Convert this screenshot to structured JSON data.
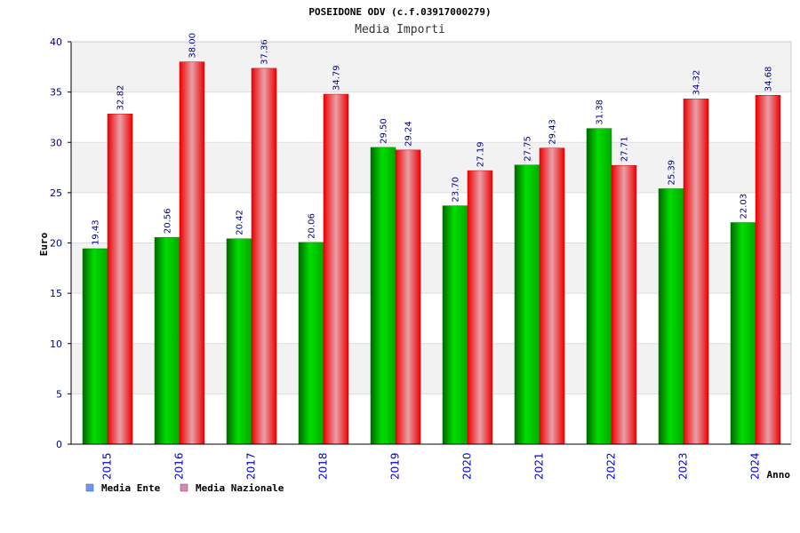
{
  "chart_data": {
    "type": "bar",
    "title": "POSEIDONE ODV (c.f.03917000279)",
    "subtitle": "Media Importi",
    "xlabel": "Anno",
    "ylabel": "Euro",
    "ylim": [
      0,
      40
    ],
    "yticks": [
      0,
      5,
      10,
      15,
      20,
      25,
      30,
      35,
      40
    ],
    "grid": true,
    "legend_position": "bottom-left",
    "categories": [
      "2015",
      "2016",
      "2017",
      "2018",
      "2019",
      "2020",
      "2021",
      "2022",
      "2023",
      "2024"
    ],
    "series": [
      {
        "name": "Media Ente",
        "color": "#00aa00",
        "legend_color": "#6699ff",
        "values": [
          19.43,
          20.56,
          20.42,
          20.06,
          29.5,
          23.7,
          27.75,
          31.38,
          25.39,
          22.03
        ],
        "labels": [
          "19.43",
          "20.56",
          "20.42",
          "20.06",
          "29.50",
          "23.70",
          "27.75",
          "31.38",
          "25.39",
          "22.03"
        ]
      },
      {
        "name": "Media Nazionale",
        "color": "#ee1111",
        "legend_color": "#dd88bb",
        "values": [
          32.82,
          38.0,
          37.36,
          34.79,
          29.24,
          27.19,
          29.43,
          27.71,
          34.32,
          34.68
        ],
        "labels": [
          "32.82",
          "38.00",
          "37.36",
          "34.79",
          "29.24",
          "27.19",
          "29.43",
          "27.71",
          "34.32",
          "34.68"
        ]
      }
    ]
  }
}
